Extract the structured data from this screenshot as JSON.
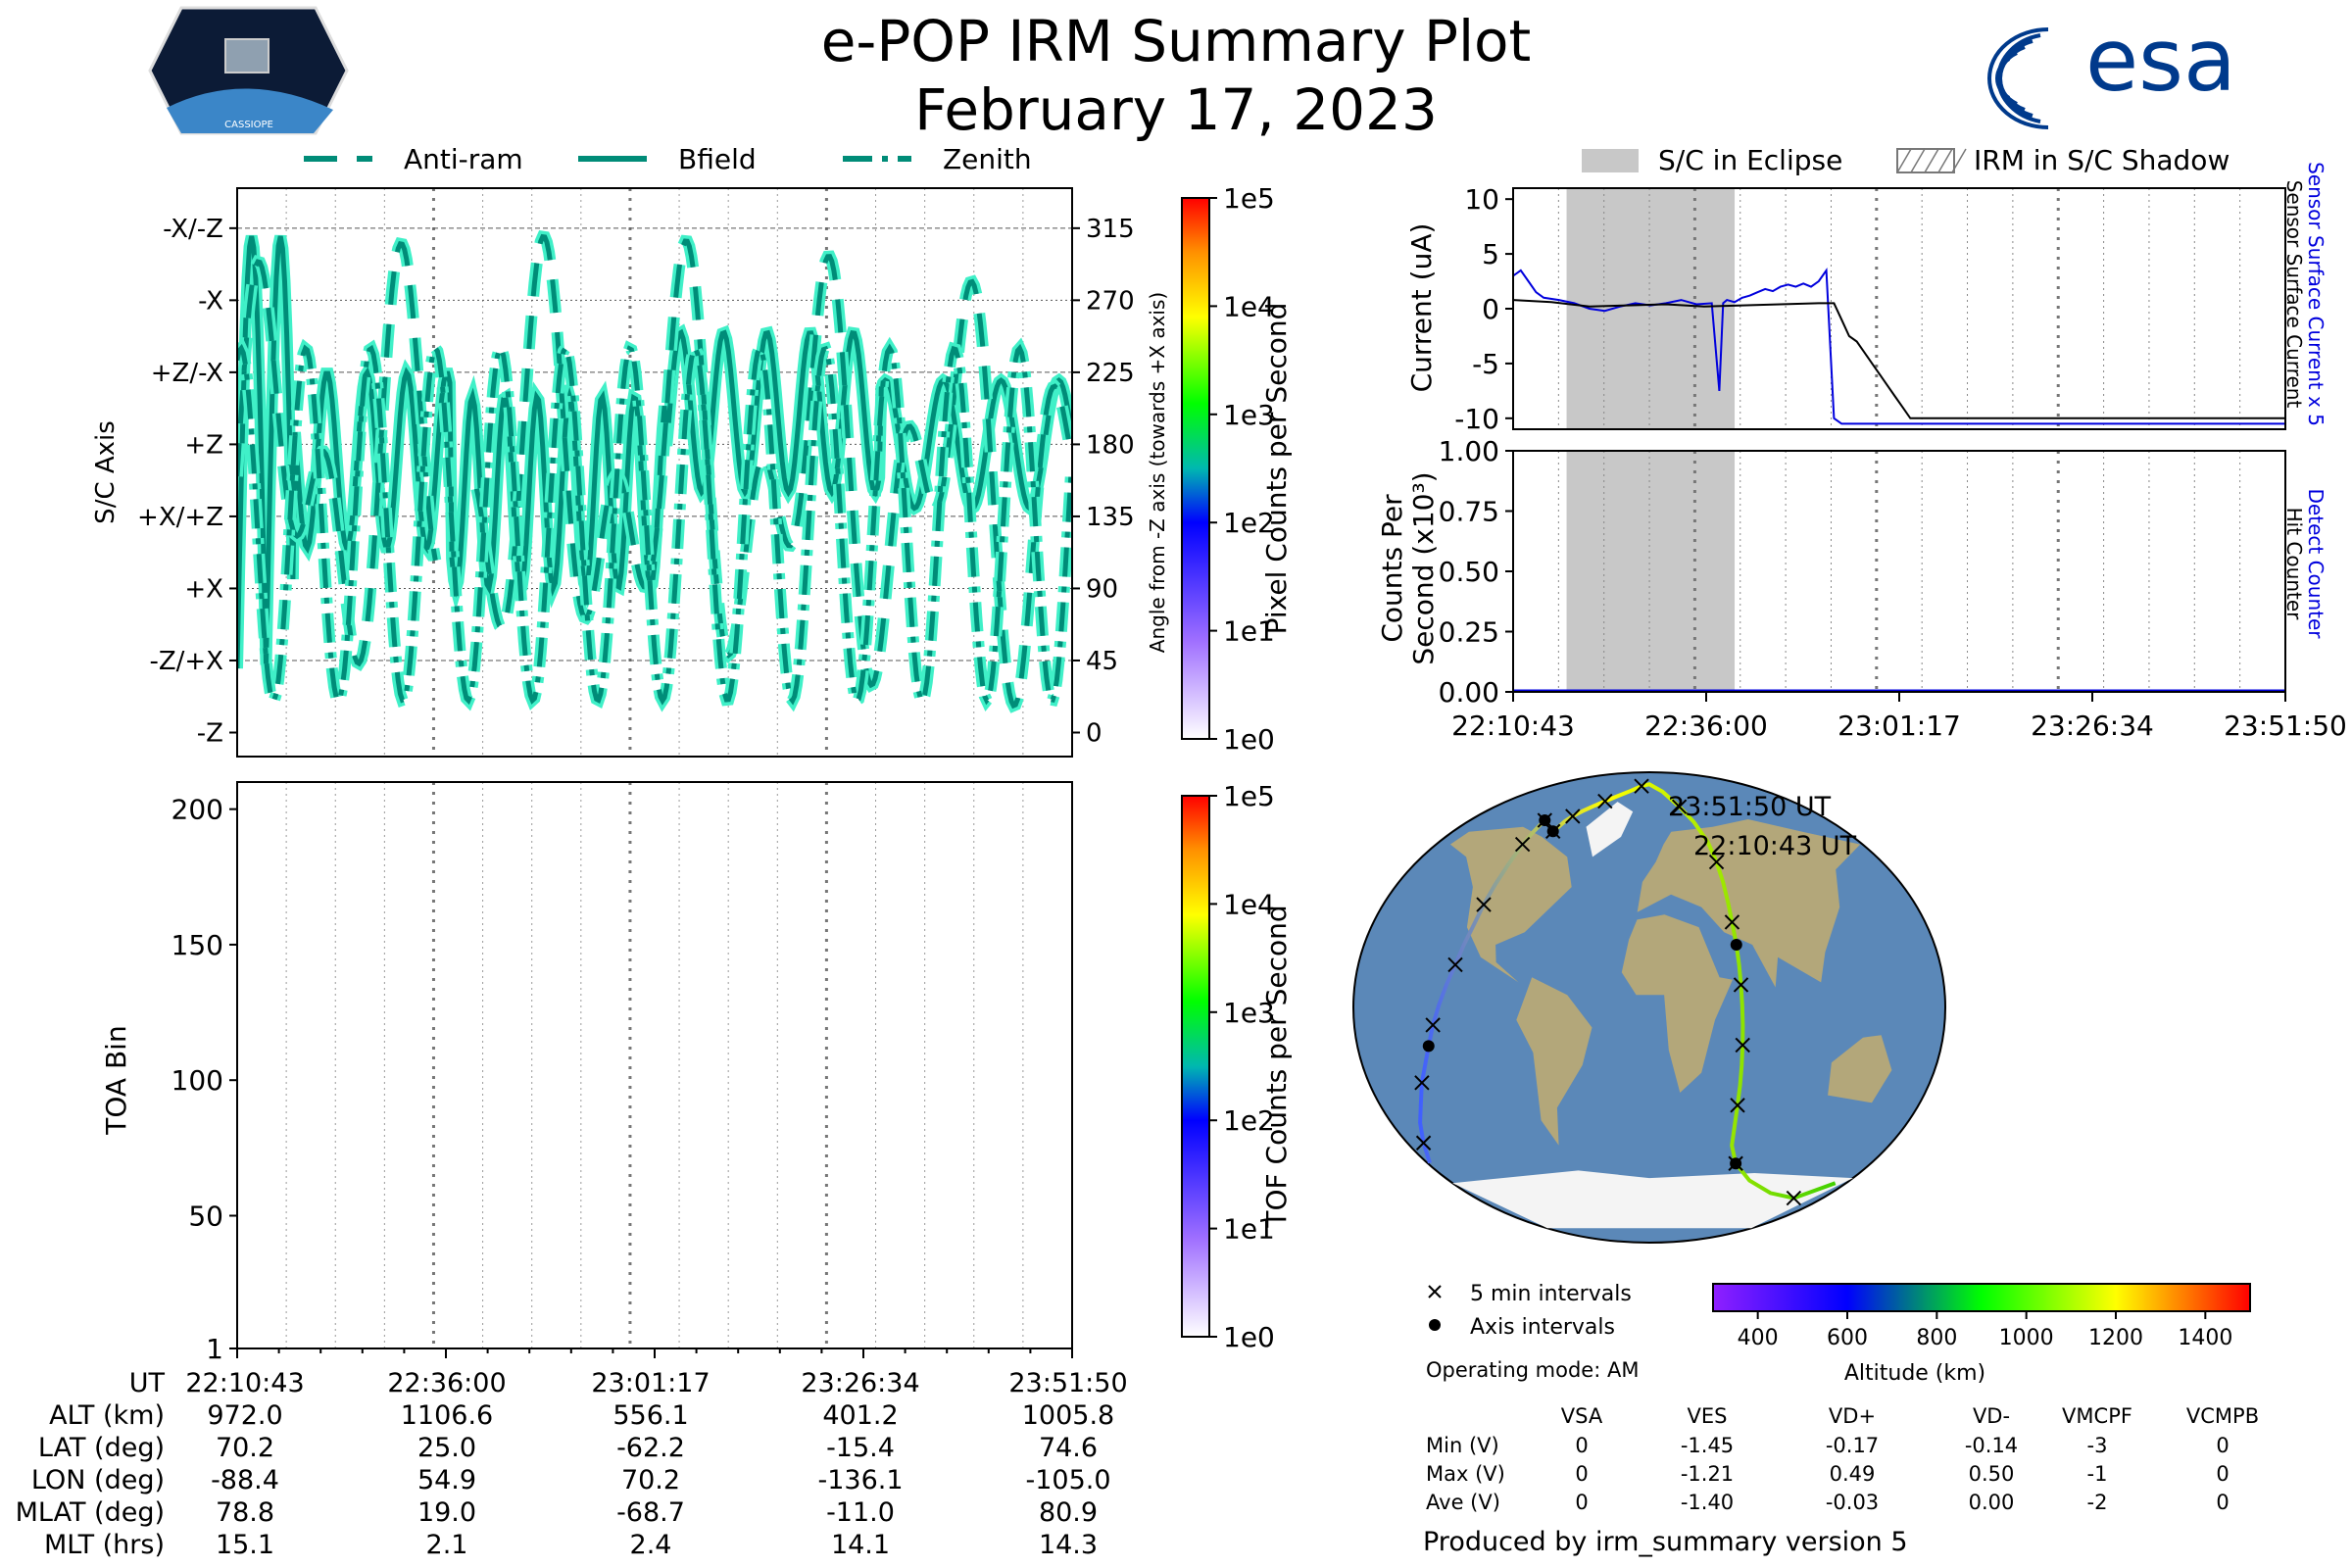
{
  "header": {
    "title": "e-POP IRM Summary Plot",
    "date": "February 17, 2023",
    "logo_left": "CASSIOPE",
    "logo_right": "esa"
  },
  "colors": {
    "trace": "#008c78",
    "trace_glow": "#40f0c8",
    "eclipse": "#c8c8c8",
    "sensor_current_x5": "#0000dd",
    "sensor_current": "#000000",
    "ocean": "#5b88b8",
    "land": "#b3a77a"
  },
  "chart_data": [
    {
      "id": "sc-axis",
      "type": "line",
      "legend": [
        "Anti-ram",
        "Bfield",
        "Zenith"
      ],
      "ylabel_left": "S/C Axis",
      "ylabel_right": "Angle from -Z axis (towards +X axis)",
      "y_categories": [
        "-X/-Z",
        "-X",
        "+Z/-X",
        "+Z",
        "+X/+Z",
        "+X",
        "-Z/+X",
        "-Z"
      ],
      "y_ticks_right": [
        315,
        270,
        225,
        180,
        135,
        90,
        45,
        0
      ],
      "ylim": [
        -15,
        340
      ],
      "colorbar": {
        "label": "Pixel Counts per Second",
        "ticks": [
          "1e0",
          "1e1",
          "1e2",
          "1e3",
          "1e4",
          "1e5"
        ]
      }
    },
    {
      "id": "toa",
      "type": "heatmap",
      "ylabel": "TOA Bin",
      "y_ticks": [
        1,
        50,
        100,
        150,
        200
      ],
      "ylim": [
        1,
        210
      ],
      "colorbar": {
        "label": "TOF Counts per Second",
        "ticks": [
          "1e0",
          "1e1",
          "1e2",
          "1e3",
          "1e4",
          "1e5"
        ]
      }
    },
    {
      "id": "current",
      "type": "line",
      "legend": [
        "S/C in Eclipse",
        "IRM in S/C Shadow"
      ],
      "ylabel": "Current (uA)",
      "ylabel_right": [
        "Sensor Surface Current x 5",
        "Sensor Surface Current"
      ],
      "y_ticks": [
        10,
        5,
        0,
        -5,
        -10
      ],
      "ylim": [
        -11,
        11
      ],
      "x_ticks": [
        "22:10:43",
        "22:36:00",
        "23:01:17",
        "23:26:34",
        "23:51:50"
      ],
      "eclipse_min": [
        7,
        29
      ],
      "series": [
        {
          "name": "Sensor Surface Current x 5",
          "x": [
            0,
            1,
            2,
            3,
            4,
            6,
            8,
            10,
            12,
            14,
            16,
            18,
            20,
            22,
            24,
            26,
            27,
            27.5,
            28,
            29,
            30,
            31,
            32,
            33,
            34,
            35,
            36,
            37,
            38,
            39,
            40,
            41,
            42,
            43,
            44,
            45,
            46,
            47,
            48,
            49,
            50,
            51,
            52,
            53,
            54,
            55,
            56,
            57,
            58,
            59,
            60,
            61,
            62,
            63,
            64,
            65,
            66,
            67,
            68,
            69,
            70,
            71,
            72,
            73,
            74,
            75,
            76,
            77,
            78,
            79,
            80,
            81,
            82,
            83,
            84,
            85,
            86,
            87,
            88,
            89,
            90,
            91,
            92,
            93,
            94,
            95,
            96,
            97,
            98,
            99,
            100,
            101.1
          ],
          "y": [
            3,
            3.5,
            2.5,
            1.5,
            1,
            0.8,
            0.5,
            0,
            -0.2,
            0.2,
            0.5,
            0.3,
            0.5,
            0.8,
            0.4,
            0.5,
            -7.5,
            0.5,
            0.8,
            0.6,
            1,
            1.2,
            1.5,
            1.8,
            1.6,
            2,
            2.2,
            2,
            2.3,
            2,
            2.5,
            3.5,
            -10,
            -11,
            -11,
            -11,
            -11,
            -11,
            -11,
            -11,
            -11,
            -11,
            -11,
            -11,
            -11,
            -11,
            -11,
            -11,
            -11,
            -11,
            -11,
            -11,
            -11,
            -11,
            -11,
            -11,
            -11,
            -11,
            -11,
            -11,
            -11,
            -11,
            -11,
            -11,
            -11,
            -11,
            -11,
            -11,
            -11,
            -11,
            -11,
            -11,
            -11,
            -11,
            -11,
            -11,
            -11,
            -11,
            -11,
            -11,
            -11,
            -11,
            -11,
            -11,
            -11,
            -11,
            -11,
            -11,
            -11,
            -11,
            -11,
            -11
          ]
        },
        {
          "name": "Sensor Surface Current",
          "x": [
            0,
            5,
            10,
            15,
            20,
            25,
            30,
            35,
            40,
            42,
            43,
            44,
            45,
            46,
            47,
            48,
            49,
            50,
            51,
            52,
            53,
            55,
            58,
            60,
            62,
            64,
            66,
            68,
            70,
            72,
            74,
            76,
            78,
            80,
            82,
            84,
            86,
            88,
            90,
            92,
            94,
            96,
            98,
            101.1
          ],
          "y": [
            0.8,
            0.6,
            0.2,
            0.3,
            0.4,
            0.2,
            0.3,
            0.4,
            0.5,
            0.5,
            -1,
            -2.5,
            -3,
            -4,
            -5,
            -6,
            -7,
            -8,
            -9,
            -10,
            -10,
            -10,
            -10,
            -10,
            -10,
            -10,
            -10,
            -10,
            -10,
            -10,
            -10,
            -10,
            -10,
            -10,
            -10,
            -10,
            -10,
            -10,
            -10,
            -10,
            -10,
            -10,
            -10,
            -10
          ]
        }
      ]
    },
    {
      "id": "counts",
      "type": "line",
      "ylabel": [
        "Counts Per",
        "Second (x10³)"
      ],
      "ylabel_right": [
        "Detect Counter",
        "Hit Counter"
      ],
      "y_ticks": [
        "1.00",
        "0.75",
        "0.50",
        "0.25",
        "0.00"
      ],
      "ylim": [
        0,
        1
      ],
      "x_ticks": [
        "22:10:43",
        "22:36:00",
        "23:01:17",
        "23:26:34",
        "23:51:50"
      ]
    },
    {
      "id": "map",
      "type": "scatter",
      "labels": [
        "23:51:50 UT",
        "22:10:43 UT"
      ],
      "legend": [
        "5 min intervals",
        "Axis intervals"
      ],
      "colorbar": {
        "label": "Altitude (km)",
        "ticks": [
          400,
          600,
          800,
          1000,
          1200,
          1400
        ],
        "range": [
          300,
          1500
        ]
      },
      "track_lat": [
        70.2,
        72.2,
        74.2,
        76.2,
        78.2,
        80.2,
        82.2,
        84.2,
        86.2,
        88.2,
        89,
        86,
        80,
        74,
        66,
        58,
        50,
        42,
        34,
        25,
        17,
        9,
        1,
        -7,
        -15,
        -23,
        -31,
        -39,
        -47,
        -55,
        -62.2,
        -69,
        -74,
        -76,
        -70,
        -62,
        -54,
        -46,
        -38,
        -30,
        -22,
        -15.4,
        -7,
        1,
        9,
        17,
        25,
        33,
        41,
        49,
        57,
        65,
        70,
        72,
        74.6
      ],
      "track_lon": [
        -88.4,
        -86,
        -84,
        -80,
        -74,
        -66,
        -56,
        -44,
        -30,
        -14,
        0,
        20,
        35,
        44,
        50,
        52,
        53,
        53.5,
        54,
        54.9,
        55.5,
        56,
        56.5,
        57,
        57.5,
        58,
        58.5,
        59,
        60,
        62,
        70.2,
        90,
        120,
        150,
        170,
        -178,
        -168,
        -160,
        -152,
        -146,
        -140,
        -136.1,
        -132,
        -128,
        -124,
        -120,
        -117,
        -114,
        -112,
        -110,
        -108,
        -107,
        -106,
        -105.5,
        -105.0
      ]
    }
  ],
  "ut_table": {
    "row_labels": [
      "UT",
      "ALT (km)",
      "LAT (deg)",
      "LON (deg)",
      "MLAT (deg)",
      "MLT (hrs)"
    ],
    "columns": [
      [
        "22:10:43",
        "972.0",
        "70.2",
        "-88.4",
        "78.8",
        "15.1"
      ],
      [
        "22:36:00",
        "1106.6",
        "25.0",
        "54.9",
        "19.0",
        "2.1"
      ],
      [
        "23:01:17",
        "556.1",
        "-62.2",
        "70.2",
        "-68.7",
        "2.4"
      ],
      [
        "23:26:34",
        "401.2",
        "-15.4",
        "-136.1",
        "-11.0",
        "14.1"
      ],
      [
        "23:51:50",
        "1005.8",
        "74.6",
        "-105.0",
        "80.9",
        "14.3"
      ]
    ]
  },
  "voltage_table": {
    "operating_mode": "Operating mode: AM",
    "headers": [
      "VSA",
      "VES",
      "VD+",
      "VD-",
      "VMCPF",
      "VCMPB"
    ],
    "rows": [
      {
        "label": "Min (V)",
        "values": [
          "0",
          "-1.45",
          "-0.17",
          "-0.14",
          "-3",
          "0"
        ]
      },
      {
        "label": "Max (V)",
        "values": [
          "0",
          "-1.21",
          "0.49",
          "0.50",
          "-1",
          "0"
        ]
      },
      {
        "label": "Ave (V)",
        "values": [
          "0",
          "-1.40",
          "-0.03",
          "0.00",
          "-2",
          "0"
        ]
      }
    ]
  },
  "footer": "Produced by irm_summary version 5"
}
